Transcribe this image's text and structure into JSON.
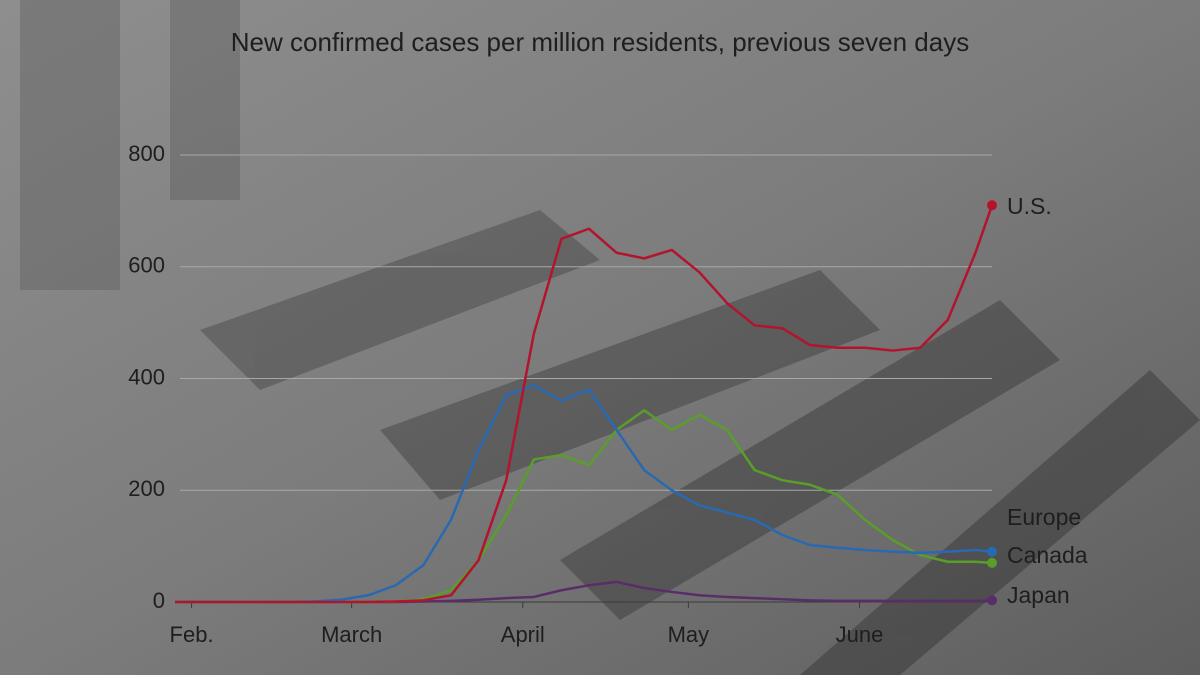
{
  "chart_data": {
    "type": "line",
    "title": "New confirmed cases per million residents, previous seven days",
    "x": [
      -3,
      2,
      7,
      12,
      17,
      22,
      27,
      32,
      37,
      42,
      47,
      52,
      57,
      62,
      67,
      72,
      77,
      82,
      87,
      92,
      97,
      102,
      107,
      112,
      117,
      122,
      127,
      132,
      137,
      142,
      145
    ],
    "xlim": [
      -3,
      145
    ],
    "xticks": [
      {
        "value": 0,
        "label": "Feb."
      },
      {
        "value": 29,
        "label": "March"
      },
      {
        "value": 60,
        "label": "April"
      },
      {
        "value": 90,
        "label": "May"
      },
      {
        "value": 121,
        "label": "June"
      }
    ],
    "ylim": [
      0,
      800
    ],
    "yticks": [
      0,
      200,
      400,
      600,
      800
    ],
    "grid": true,
    "series": [
      {
        "name": "U.S.",
        "color": "#b3142d",
        "values": [
          0,
          0,
          0,
          0,
          0,
          0,
          0,
          0,
          1,
          3,
          12,
          75,
          218,
          480,
          650,
          668,
          625,
          615,
          630,
          590,
          535,
          495,
          490,
          460,
          455,
          455,
          450,
          455,
          505,
          625,
          710
        ]
      },
      {
        "name": "Europe",
        "color": "#2869b3",
        "values": [
          0,
          0,
          0,
          0,
          0,
          1,
          4,
          12,
          30,
          66,
          147,
          272,
          370,
          388,
          360,
          380,
          308,
          236,
          200,
          173,
          160,
          147,
          120,
          102,
          97,
          93,
          90,
          88,
          90,
          93,
          90
        ]
      },
      {
        "name": "Canada",
        "color": "#5a9e2a",
        "values": [
          0,
          0,
          0,
          0,
          0,
          0,
          0,
          0,
          1,
          5,
          21,
          75,
          155,
          255,
          263,
          245,
          308,
          343,
          308,
          335,
          308,
          236,
          218,
          210,
          192,
          147,
          111,
          84,
          72,
          72,
          70
        ]
      },
      {
        "name": "Japan",
        "color": "#5a2d6a",
        "values": [
          0,
          0,
          0,
          0,
          0,
          0,
          0,
          0,
          0,
          1,
          2,
          4,
          7,
          9,
          21,
          30,
          36,
          25,
          18,
          12,
          9,
          7,
          5,
          3,
          2,
          2,
          2,
          2,
          2,
          2,
          3
        ]
      }
    ]
  }
}
